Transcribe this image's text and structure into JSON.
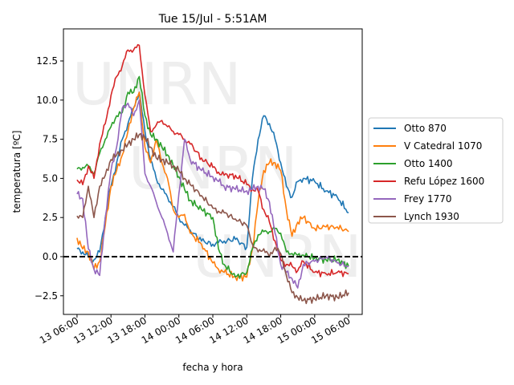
{
  "chart_data": {
    "type": "line",
    "title": "Tue 15/Jul - 5:51AM",
    "xlabel": "fecha y hora",
    "ylabel": "temperatura [ºC]",
    "x_unit": "hours since 13 06:00",
    "xlim": [
      -2.4,
      50.4
    ],
    "ylim": [
      -3.69,
      14.55
    ],
    "xticks": [
      0,
      6,
      12,
      18,
      24,
      30,
      36,
      42,
      48
    ],
    "xtick_labels": [
      "13 06:00",
      "13 12:00",
      "13 18:00",
      "14 00:00",
      "14 06:00",
      "14 12:00",
      "14 18:00",
      "15 00:00",
      "15 06:00"
    ],
    "yticks": [
      -2.5,
      0,
      2.5,
      5,
      7.5,
      10,
      12.5
    ],
    "ytick_labels": [
      "−2.5",
      "0.0",
      "2.5",
      "5.0",
      "7.5",
      "10.0",
      "12.5"
    ],
    "reference_line": {
      "y": 0,
      "style": "dashed",
      "color": "#000000"
    },
    "legend_position": "right",
    "watermark": "UNRN",
    "x": [
      0,
      1,
      2,
      3,
      4,
      5,
      6,
      7,
      8,
      9,
      10,
      11,
      12,
      13,
      14,
      15,
      16,
      17,
      18,
      19,
      20,
      22,
      24,
      25,
      26,
      28,
      30,
      31,
      32,
      33,
      34,
      35,
      36,
      37,
      38,
      39,
      40,
      42,
      44,
      46,
      48
    ],
    "series": [
      {
        "name": "Otto 870",
        "color": "#1f77b4",
        "values": [
          0.5,
          0.3,
          0.0,
          -0.2,
          0.3,
          2.5,
          4.5,
          6,
          7.5,
          8.5,
          9.5,
          10.5,
          8,
          6.2,
          5,
          4.3,
          3.8,
          3.2,
          2.5,
          2,
          1.7,
          1.0,
          0.8,
          0.9,
          1.0,
          1.1,
          0.6,
          5,
          7.5,
          9,
          8.5,
          7.5,
          6,
          4.5,
          3.8,
          4.8,
          5,
          4.8,
          4.2,
          3.8,
          2.8
        ]
      },
      {
        "name": "V Catedral 1070",
        "color": "#ff7f0e",
        "values": [
          1.2,
          0.5,
          0.3,
          -0.8,
          -0.3,
          2,
          4.5,
          5.5,
          6.5,
          8,
          9.5,
          10.5,
          7,
          6,
          7.5,
          6,
          5,
          3,
          2.5,
          2.7,
          1.5,
          0.8,
          -0.4,
          -0.8,
          -1.0,
          -1.3,
          -1.3,
          0.5,
          3.5,
          5.5,
          6,
          6,
          5.5,
          3,
          1.3,
          2.2,
          2.5,
          1.8,
          1.9,
          1.9,
          1.6
        ]
      },
      {
        "name": "Otto 1400",
        "color": "#2ca02c",
        "values": [
          5.6,
          5.7,
          5.8,
          5.3,
          6.6,
          7.5,
          8.3,
          9,
          9.2,
          10.5,
          10.5,
          11.5,
          9,
          7.8,
          7.5,
          7,
          6.5,
          5.8,
          5.1,
          4.3,
          3.6,
          3.0,
          2.5,
          0.5,
          -0.5,
          -1.3,
          -1.0,
          0.5,
          1.4,
          1.6,
          1.6,
          1.8,
          1.5,
          0.3,
          0.2,
          0.1,
          0.1,
          -0.1,
          -0.2,
          -0.2,
          -0.6
        ]
      },
      {
        "name": "Refu López 1600",
        "color": "#d62728",
        "values": [
          4.9,
          4.6,
          5.8,
          5.0,
          7.2,
          8.5,
          10.3,
          11.5,
          12.2,
          13.2,
          13.2,
          13.5,
          10.3,
          8,
          8.4,
          8.7,
          8.3,
          8.0,
          7.8,
          7.5,
          7.2,
          6.3,
          5.7,
          5.4,
          5.2,
          5.2,
          4.6,
          4.3,
          4.2,
          3.0,
          2.2,
          1.0,
          -0.2,
          -0.5,
          -0.6,
          -0.9,
          -0.3,
          -1.0,
          -1.1,
          -1.0,
          -1.1
        ]
      },
      {
        "name": "Frey 1770",
        "color": "#9467bd",
        "values": [
          4.0,
          3.7,
          0.5,
          -0.8,
          -1.2,
          2.5,
          5.5,
          7,
          9.5,
          9.8,
          9.0,
          10.0,
          5.3,
          4.5,
          3.5,
          2.5,
          1.5,
          0.3,
          4,
          7.5,
          6.2,
          5.5,
          5.1,
          4.8,
          4.5,
          4.3,
          4.2,
          4.3,
          4.5,
          4.3,
          3.5,
          1.5,
          -0.5,
          -1.0,
          -1.4,
          -2.0,
          -0.5,
          -0.3,
          0.0,
          -0.4,
          -0.6
        ]
      },
      {
        "name": "Lynch 1930",
        "color": "#8c564b",
        "values": [
          2.6,
          2.5,
          4.5,
          2.5,
          4.5,
          5.2,
          6.2,
          6.5,
          6.8,
          7.2,
          7.5,
          7.8,
          7.6,
          7.0,
          6.3,
          6.2,
          6.0,
          5.8,
          5.5,
          5.0,
          4.6,
          3.9,
          3.1,
          2.9,
          2.8,
          2.4,
          2.0,
          0.8,
          0.3,
          0.5,
          0.0,
          0.6,
          0.2,
          -1.2,
          -2.3,
          -2.6,
          -2.8,
          -2.7,
          -2.5,
          -2.6,
          -2.3
        ]
      }
    ]
  }
}
